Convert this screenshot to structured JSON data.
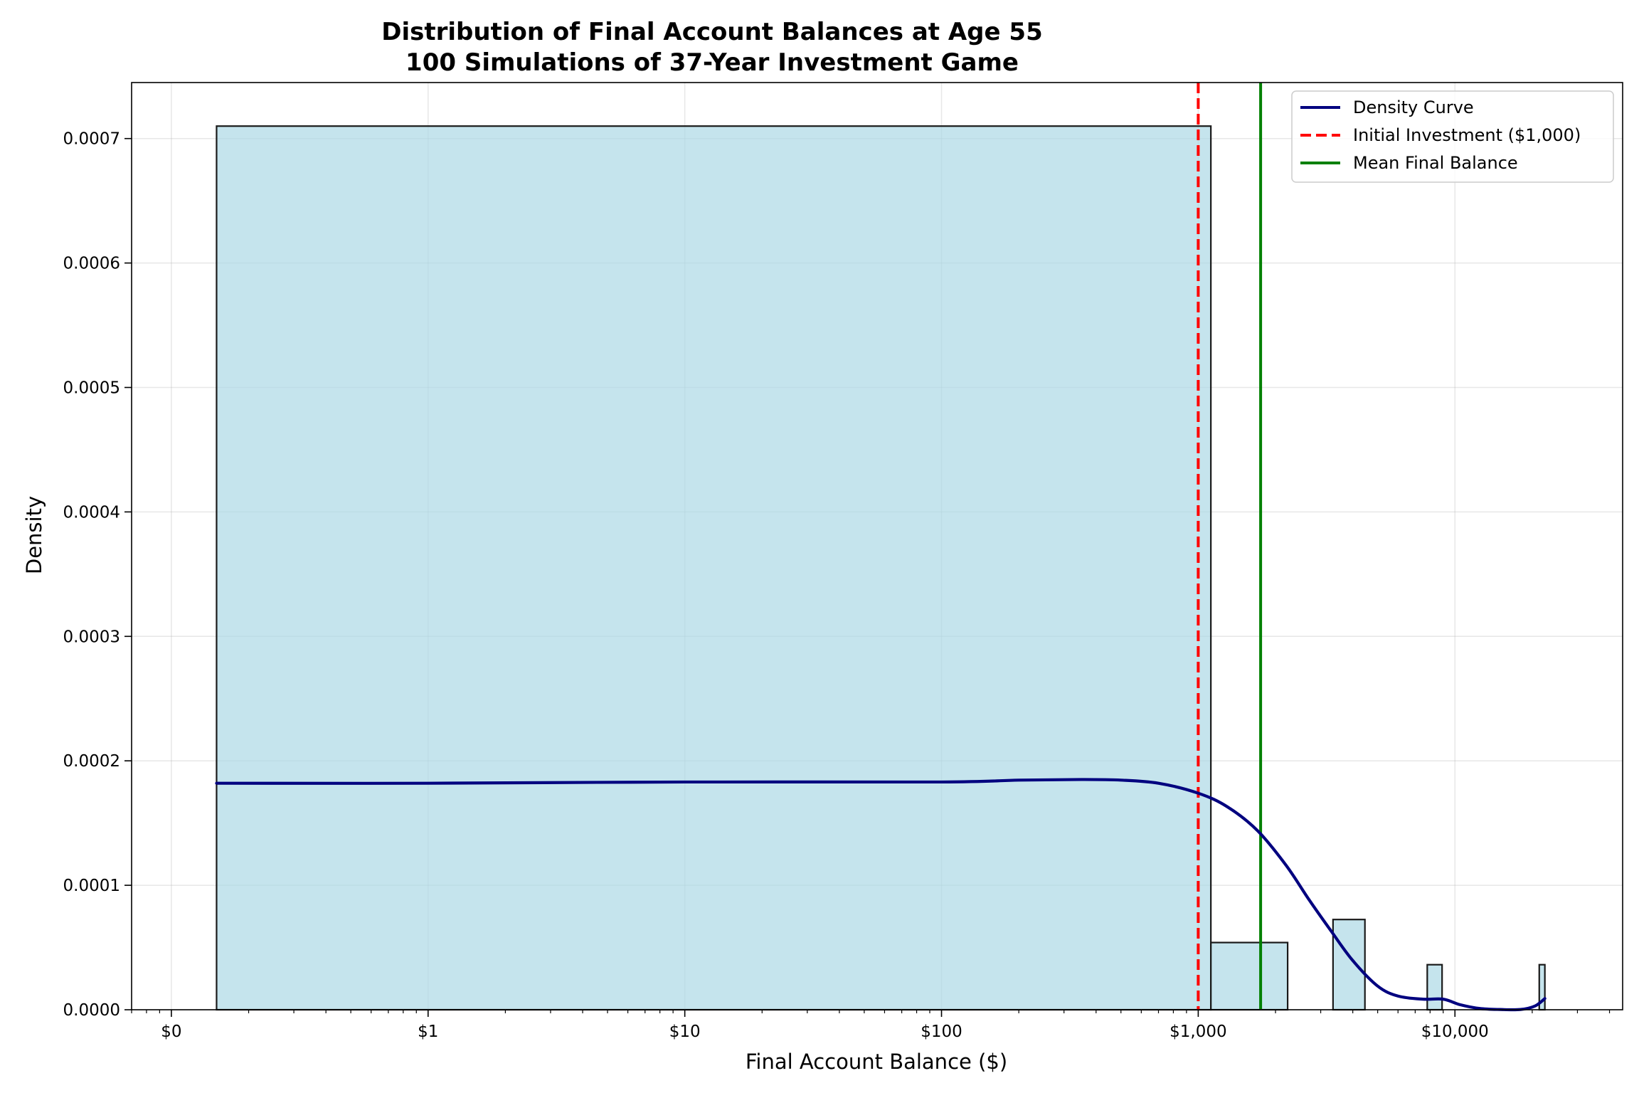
{
  "chart_data": {
    "type": "bar",
    "title": "Distribution of Final Account Balances at Age 55",
    "subtitle": "100 Simulations of 37-Year Investment Game",
    "xlabel": "Final Account Balance ($)",
    "ylabel": "Density",
    "x_scale": "log",
    "xlim": [
      0.07,
      45000
    ],
    "ylim": [
      0,
      0.000745
    ],
    "x_ticks": [
      {
        "value": 0.1,
        "label": "$0"
      },
      {
        "value": 1,
        "label": "$1"
      },
      {
        "value": 10,
        "label": "$10"
      },
      {
        "value": 100,
        "label": "$100"
      },
      {
        "value": 1000,
        "label": "$1,000"
      },
      {
        "value": 10000,
        "label": "$10,000"
      }
    ],
    "y_ticks": [
      {
        "value": 0,
        "label": "0.0000"
      },
      {
        "value": 0.0001,
        "label": "0.0001"
      },
      {
        "value": 0.0002,
        "label": "0.0002"
      },
      {
        "value": 0.0003,
        "label": "0.0003"
      },
      {
        "value": 0.0004,
        "label": "0.0004"
      },
      {
        "value": 0.0005,
        "label": "0.0005"
      },
      {
        "value": 0.0006,
        "label": "0.0006"
      },
      {
        "value": 0.0007,
        "label": "0.0007"
      }
    ],
    "grid": true,
    "histogram_bins": [
      {
        "x0": 0.15,
        "x1": 1120,
        "density": 0.00071
      },
      {
        "x0": 1120,
        "x1": 2230,
        "density": 5.4e-05
      },
      {
        "x0": 3350,
        "x1": 4460,
        "density": 7.25e-05
      },
      {
        "x0": 7800,
        "x1": 8910,
        "density": 3.62e-05
      },
      {
        "x0": 21300,
        "x1": 22400,
        "density": 3.62e-05
      }
    ],
    "density_curve": {
      "name": "Density Curve",
      "x": [
        0.15,
        1,
        10,
        100,
        200,
        350,
        500,
        700,
        1000,
        1300,
        1700,
        2200,
        2700,
        3300,
        4000,
        5000,
        6000,
        7500,
        9000,
        10500,
        12500,
        15000,
        18000,
        20500,
        22400
      ],
      "y": [
        0.000182,
        0.000182,
        0.000183,
        0.000183,
        0.0001845,
        0.000185,
        0.0001845,
        0.000182,
        0.000174,
        0.000163,
        0.000144,
        0.000116,
        8.85e-05,
        6.3e-05,
        3.95e-05,
        1.9e-05,
        1.1e-05,
        8.5e-06,
        8.5e-06,
        4e-06,
        1e-06,
        2e-07,
        2e-07,
        3e-06,
        9e-06
      ],
      "color": "#00007f"
    },
    "vlines": [
      {
        "name": "Initial Investment ($1,000)",
        "x": 1000,
        "color": "#ff0000",
        "style": "dashed"
      },
      {
        "name": "Mean Final Balance",
        "x": 1750,
        "color": "#008000",
        "style": "solid"
      }
    ],
    "legend": {
      "position": "top-right",
      "entries": [
        {
          "label": "Density Curve",
          "color": "#00007f",
          "style": "solid"
        },
        {
          "label": "Initial Investment ($1,000)",
          "color": "#ff0000",
          "style": "dashed"
        },
        {
          "label": "Mean Final Balance",
          "color": "#008000",
          "style": "solid"
        }
      ]
    },
    "bar_color": "#add8e6",
    "bar_edge_color": "#1a1a1a"
  }
}
